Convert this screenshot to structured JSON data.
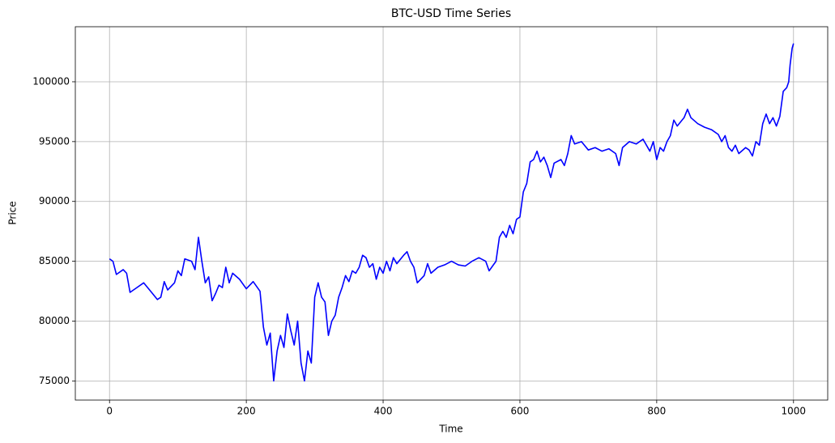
{
  "chart_data": {
    "type": "line",
    "title": "BTC-USD Time Series",
    "x_label": "Time",
    "y_label": "Price",
    "color": "#0000ff",
    "grid": true,
    "xlim": [
      -50,
      1050
    ],
    "ylim": [
      73400,
      104600
    ],
    "xticks": [
      0,
      200,
      400,
      600,
      800,
      1000
    ],
    "yticks": [
      75000,
      80000,
      85000,
      90000,
      95000,
      100000
    ],
    "x": [
      0,
      5,
      10,
      20,
      25,
      30,
      40,
      50,
      60,
      70,
      75,
      80,
      85,
      95,
      100,
      105,
      110,
      120,
      125,
      130,
      135,
      140,
      145,
      150,
      155,
      160,
      165,
      170,
      175,
      180,
      190,
      200,
      210,
      220,
      225,
      230,
      235,
      240,
      245,
      250,
      255,
      260,
      265,
      270,
      275,
      280,
      285,
      290,
      295,
      300,
      305,
      310,
      315,
      320,
      325,
      330,
      335,
      340,
      345,
      350,
      355,
      360,
      365,
      370,
      375,
      380,
      385,
      390,
      395,
      400,
      405,
      410,
      415,
      420,
      430,
      435,
      440,
      445,
      450,
      460,
      465,
      470,
      480,
      490,
      500,
      510,
      520,
      530,
      540,
      550,
      555,
      560,
      565,
      570,
      575,
      580,
      585,
      590,
      595,
      600,
      605,
      610,
      615,
      620,
      625,
      630,
      635,
      640,
      645,
      650,
      660,
      665,
      670,
      675,
      680,
      690,
      700,
      710,
      720,
      730,
      740,
      745,
      750,
      760,
      770,
      780,
      790,
      795,
      800,
      805,
      810,
      815,
      820,
      825,
      830,
      840,
      845,
      850,
      860,
      870,
      880,
      890,
      895,
      900,
      905,
      910,
      915,
      920,
      930,
      935,
      940,
      945,
      950,
      955,
      960,
      965,
      970,
      975,
      980,
      985,
      990,
      993,
      995,
      998,
      1000
    ],
    "values": [
      85200,
      85000,
      83900,
      84300,
      84000,
      82400,
      82800,
      83200,
      82500,
      81800,
      82000,
      83300,
      82600,
      83200,
      84200,
      83800,
      85200,
      85000,
      84300,
      87000,
      85000,
      83200,
      83700,
      81700,
      82300,
      83000,
      82800,
      84500,
      83200,
      84000,
      83500,
      82700,
      83300,
      82500,
      79500,
      78000,
      79000,
      75000,
      77500,
      78800,
      77800,
      80600,
      79200,
      78000,
      80000,
      76500,
      75000,
      77500,
      76500,
      82000,
      83200,
      82000,
      81600,
      78800,
      80000,
      80500,
      82000,
      82800,
      83800,
      83300,
      84200,
      84000,
      84500,
      85500,
      85300,
      84500,
      84800,
      83500,
      84500,
      84000,
      85000,
      84200,
      85300,
      84800,
      85500,
      85800,
      85000,
      84500,
      83200,
      83800,
      84800,
      84000,
      84500,
      84700,
      85000,
      84700,
      84600,
      85000,
      85300,
      85000,
      84200,
      84600,
      85000,
      87000,
      87500,
      87000,
      88000,
      87300,
      88500,
      88700,
      90800,
      91500,
      93300,
      93500,
      94200,
      93300,
      93700,
      93000,
      92000,
      93200,
      93500,
      93000,
      94000,
      95500,
      94800,
      95000,
      94300,
      94500,
      94200,
      94400,
      94000,
      93000,
      94500,
      95000,
      94800,
      95200,
      94200,
      95000,
      93500,
      94500,
      94200,
      95000,
      95500,
      96800,
      96300,
      97000,
      97700,
      97000,
      96500,
      96200,
      96000,
      95600,
      95000,
      95500,
      94500,
      94200,
      94700,
      94000,
      94500,
      94300,
      93800,
      95000,
      94700,
      96500,
      97300,
      96500,
      97000,
      96300,
      97100,
      99200,
      99500,
      100000,
      101400,
      102800,
      103200
    ]
  }
}
